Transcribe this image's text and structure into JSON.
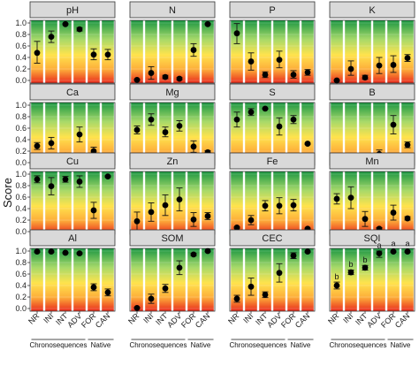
{
  "chart_data": {
    "type": "scatter",
    "ylabel": "Score",
    "ylim": [
      0,
      1
    ],
    "yticks": [
      "0.0",
      "0.2",
      "0.4",
      "0.6",
      "0.8",
      "1.0"
    ],
    "categories": [
      "NR",
      "INI",
      "INT",
      "ADV",
      "FOR",
      "CAN"
    ],
    "groups": [
      {
        "label": "Chronosequences",
        "categories": [
          "NR",
          "INI",
          "INT",
          "ADV"
        ]
      },
      {
        "label": "Native",
        "categories": [
          "FOR",
          "CAN"
        ]
      }
    ],
    "background": "vertical gradient: green (high score) to yellow to red (low score)",
    "panels": [
      {
        "title": "pH",
        "values": [
          0.48,
          0.76,
          0.98,
          0.89,
          0.45,
          0.45
        ],
        "lower": [
          0.3,
          0.66,
          0.97,
          0.86,
          0.36,
          0.36
        ],
        "upper": [
          0.68,
          0.86,
          0.99,
          0.92,
          0.55,
          0.54
        ]
      },
      {
        "title": "N",
        "values": [
          0.01,
          0.13,
          0.06,
          0.03,
          0.53,
          0.98
        ],
        "lower": [
          0.0,
          0.02,
          0.03,
          0.01,
          0.42,
          0.97
        ],
        "upper": [
          0.02,
          0.24,
          0.09,
          0.05,
          0.64,
          0.99
        ]
      },
      {
        "title": "P",
        "values": [
          0.82,
          0.33,
          0.1,
          0.36,
          0.1,
          0.14
        ],
        "lower": [
          0.64,
          0.18,
          0.05,
          0.22,
          0.04,
          0.09
        ],
        "upper": [
          0.99,
          0.48,
          0.15,
          0.51,
          0.17,
          0.19
        ]
      },
      {
        "title": "K",
        "values": [
          0.0,
          0.2,
          0.05,
          0.26,
          0.27,
          0.39
        ],
        "lower": [
          0.0,
          0.09,
          0.02,
          0.12,
          0.14,
          0.33
        ],
        "upper": [
          0.01,
          0.34,
          0.09,
          0.4,
          0.43,
          0.45
        ]
      },
      {
        "title": "Ca",
        "values": [
          0.29,
          0.34,
          0.12,
          0.49,
          0.2,
          0.11
        ],
        "lower": [
          0.23,
          0.24,
          0.11,
          0.36,
          0.13,
          0.09
        ],
        "upper": [
          0.35,
          0.44,
          0.14,
          0.62,
          0.27,
          0.14
        ]
      },
      {
        "title": "Mg",
        "values": [
          0.57,
          0.75,
          0.53,
          0.64,
          0.28,
          0.18
        ],
        "lower": [
          0.5,
          0.65,
          0.45,
          0.55,
          0.18,
          0.15
        ],
        "upper": [
          0.64,
          0.85,
          0.62,
          0.73,
          0.38,
          0.21
        ]
      },
      {
        "title": "S",
        "values": [
          0.75,
          0.88,
          0.94,
          0.63,
          0.75,
          0.33
        ],
        "lower": [
          0.62,
          0.82,
          0.93,
          0.48,
          0.68,
          0.32
        ],
        "upper": [
          0.88,
          0.94,
          0.95,
          0.78,
          0.82,
          0.34
        ]
      },
      {
        "title": "B",
        "values": [
          0.01,
          0.01,
          0.01,
          0.15,
          0.66,
          0.31
        ],
        "lower": [
          0.0,
          0.0,
          0.0,
          0.1,
          0.5,
          0.26
        ],
        "upper": [
          0.02,
          0.02,
          0.02,
          0.22,
          0.82,
          0.36
        ]
      },
      {
        "title": "Cu",
        "values": [
          0.91,
          0.79,
          0.91,
          0.87,
          0.37,
          0.96
        ],
        "lower": [
          0.85,
          0.64,
          0.86,
          0.77,
          0.23,
          0.95
        ],
        "upper": [
          0.97,
          0.94,
          0.96,
          0.97,
          0.51,
          0.97
        ]
      },
      {
        "title": "Zn",
        "values": [
          0.18,
          0.34,
          0.46,
          0.56,
          0.21,
          0.27
        ],
        "lower": [
          0.02,
          0.18,
          0.28,
          0.36,
          0.09,
          0.21
        ],
        "upper": [
          0.34,
          0.5,
          0.64,
          0.76,
          0.33,
          0.33
        ]
      },
      {
        "title": "Fe",
        "values": [
          0.07,
          0.2,
          0.45,
          0.45,
          0.46,
          0.05
        ],
        "lower": [
          0.06,
          0.12,
          0.36,
          0.31,
          0.36,
          0.04
        ],
        "upper": [
          0.08,
          0.28,
          0.54,
          0.59,
          0.56,
          0.06
        ]
      },
      {
        "title": "Mn",
        "values": [
          0.57,
          0.59,
          0.22,
          0.05,
          0.33,
          0.23
        ],
        "lower": [
          0.48,
          0.4,
          0.09,
          0.03,
          0.2,
          0.2
        ],
        "upper": [
          0.66,
          0.78,
          0.35,
          0.07,
          0.46,
          0.26
        ]
      },
      {
        "title": "Al",
        "values": [
          0.99,
          0.99,
          0.97,
          0.96,
          0.37,
          0.28
        ],
        "lower": [
          0.98,
          0.98,
          0.96,
          0.95,
          0.31,
          0.22
        ],
        "upper": [
          1.0,
          1.0,
          0.98,
          0.97,
          0.43,
          0.34
        ]
      },
      {
        "title": "SOM",
        "values": [
          0.01,
          0.17,
          0.35,
          0.71,
          0.94,
          1.0
        ],
        "lower": [
          0.0,
          0.09,
          0.28,
          0.59,
          0.92,
          0.99
        ],
        "upper": [
          0.02,
          0.25,
          0.42,
          0.83,
          0.96,
          1.0
        ]
      },
      {
        "title": "CEC",
        "values": [
          0.17,
          0.38,
          0.24,
          0.62,
          0.92,
          0.99
        ],
        "lower": [
          0.11,
          0.23,
          0.19,
          0.46,
          0.87,
          0.98
        ],
        "upper": [
          0.23,
          0.53,
          0.29,
          0.78,
          0.97,
          1.0
        ]
      },
      {
        "title": "SQI",
        "values": [
          0.4,
          0.63,
          0.71,
          0.96,
          0.99,
          0.99
        ],
        "lower": [
          0.34,
          0.59,
          0.67,
          0.89,
          0.98,
          0.98
        ],
        "upper": [
          0.46,
          0.67,
          0.75,
          1.0,
          1.0,
          1.0
        ],
        "letters": [
          "b",
          "b",
          "b",
          "a",
          "a",
          "a"
        ]
      }
    ]
  }
}
